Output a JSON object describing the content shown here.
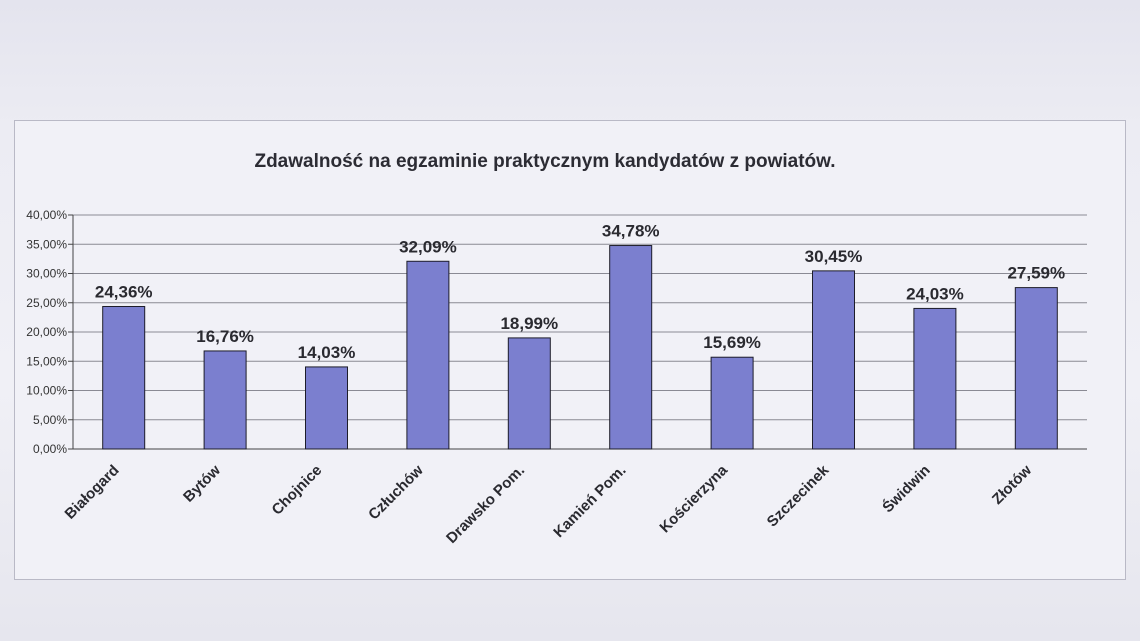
{
  "chart_data": {
    "type": "bar",
    "title": "Zdawalność na egzaminie praktycznym kandydatów z powiatów.",
    "xlabel": "",
    "ylabel": "",
    "ylim": [
      0,
      40
    ],
    "yticks": [
      "0,00%",
      "5,00%",
      "10,00%",
      "15,00%",
      "20,00%",
      "25,00%",
      "30,00%",
      "35,00%",
      "40,00%"
    ],
    "categories": [
      "Białogard",
      "Bytów",
      "Chojnice",
      "Człuchów",
      "Drawsko Pom.",
      "Kamień Pom.",
      "Kościerzyna",
      "Szczecinek",
      "Świdwin",
      "Złotów"
    ],
    "values": [
      24.36,
      16.76,
      14.03,
      32.09,
      18.99,
      34.78,
      15.69,
      30.45,
      24.03,
      27.59
    ],
    "value_labels": [
      "24,36%",
      "16,76%",
      "14,03%",
      "32,09%",
      "18,99%",
      "34,78%",
      "15,69%",
      "30,45%",
      "24,03%",
      "27,59%"
    ],
    "grid": true,
    "legend": "none",
    "colors": {
      "bar": "#7b7fcf",
      "bar_edge": "#1d1d2a",
      "grid": "#8a8a94"
    }
  }
}
